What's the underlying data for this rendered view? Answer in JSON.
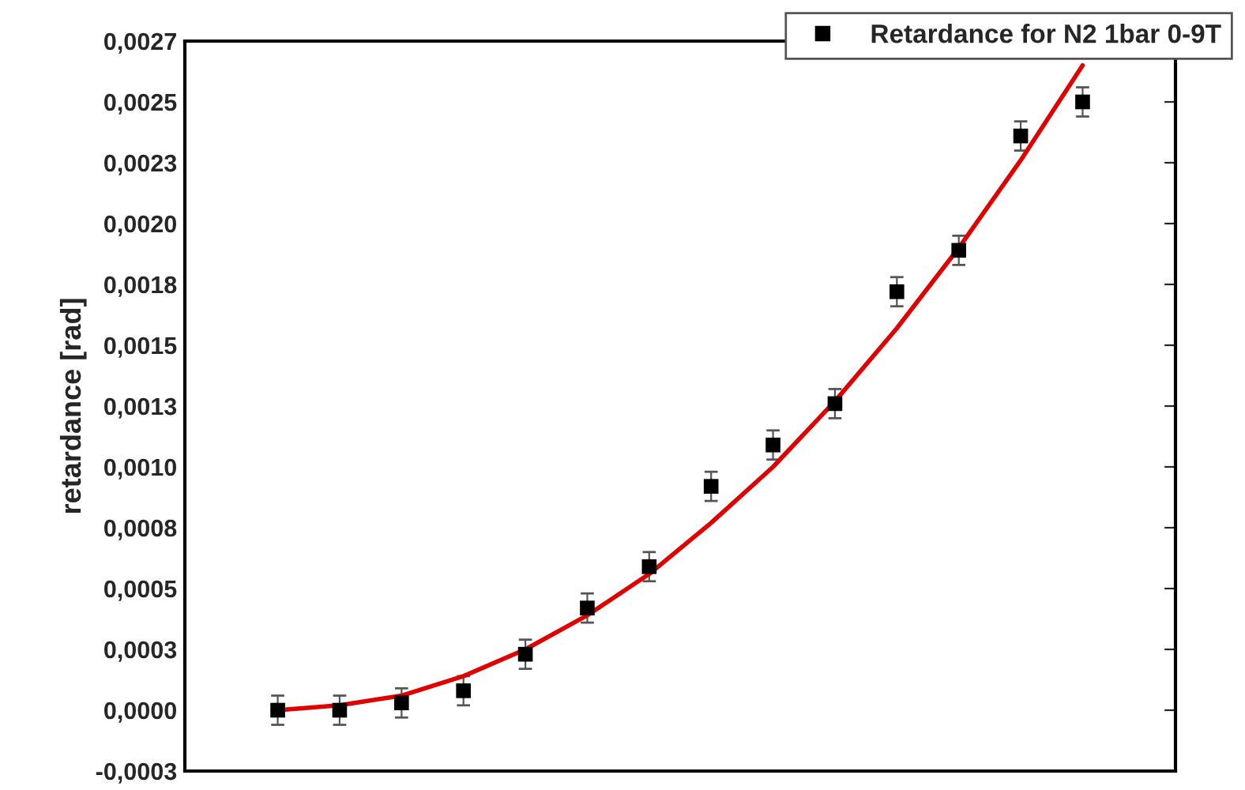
{
  "chart_data": {
    "type": "scatter",
    "ylabel": "retardance [rad]",
    "categories": [
      null,
      null,
      null,
      null,
      null,
      null,
      null,
      null,
      null,
      null,
      null,
      null,
      null,
      null
    ],
    "series": [
      {
        "name": "Retardance for N2 1bar 0-9T",
        "color": "#000000",
        "marker": "square",
        "values": [
          0.0,
          0.0,
          3e-05,
          8e-05,
          0.00023,
          0.00042,
          0.00059,
          0.00092,
          0.00109,
          0.00126,
          0.00172,
          0.00189,
          0.00236,
          0.0025
        ],
        "errors": [
          6e-05,
          6e-05,
          6e-05,
          6e-05,
          6e-05,
          6e-05,
          6e-05,
          6e-05,
          6e-05,
          6e-05,
          6e-05,
          6e-05,
          6e-05,
          6e-05
        ]
      },
      {
        "type": "line",
        "color": "#e00000",
        "marker": "none",
        "line_style": "solid",
        "values": [
          0.0,
          2e-05,
          6e-05,
          0.00014,
          0.00025,
          0.00039,
          0.00056,
          0.00077,
          0.001,
          0.00127,
          0.00157,
          0.0019,
          0.00226,
          0.00265
        ]
      }
    ],
    "ylim": [
      -0.00025,
      0.00275
    ],
    "yticks": [
      {
        "value": -0.00025,
        "label": "-0,0003"
      },
      {
        "value": 0.0,
        "label": "0,0000"
      },
      {
        "value": 0.00025,
        "label": "0,0003"
      },
      {
        "value": 0.0005,
        "label": "0,0005"
      },
      {
        "value": 0.00075,
        "label": "0,0008"
      },
      {
        "value": 0.001,
        "label": "0,0010"
      },
      {
        "value": 0.00125,
        "label": "0,0013"
      },
      {
        "value": 0.0015,
        "label": "0,0015"
      },
      {
        "value": 0.00175,
        "label": "0,0018"
      },
      {
        "value": 0.002,
        "label": "0,0020"
      },
      {
        "value": 0.00225,
        "label": "0,0023"
      },
      {
        "value": 0.0025,
        "label": "0,0025"
      },
      {
        "value": 0.00275,
        "label": "0,0027"
      }
    ],
    "tick_labels": "y",
    "grid": false,
    "legend": "top right"
  }
}
